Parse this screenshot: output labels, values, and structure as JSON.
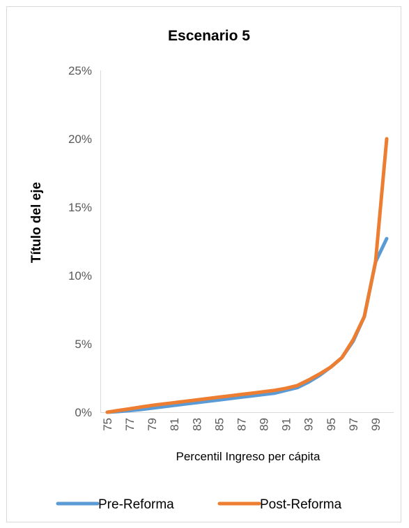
{
  "chart_data": {
    "type": "line",
    "title": "Escenario 5",
    "xlabel": "Percentil Ingreso per cápita",
    "ylabel": "Título del eje",
    "x": [
      75,
      76,
      77,
      78,
      79,
      80,
      81,
      82,
      83,
      84,
      85,
      86,
      87,
      88,
      89,
      90,
      91,
      92,
      93,
      94,
      95,
      96,
      97,
      98,
      99,
      100
    ],
    "x_tick_labels": [
      "75",
      "77",
      "79",
      "81",
      "83",
      "85",
      "87",
      "89",
      "91",
      "93",
      "95",
      "97",
      "99"
    ],
    "y_tick_labels": [
      "0%",
      "5%",
      "10%",
      "15%",
      "20%",
      "25%"
    ],
    "ylim": [
      0,
      0.25
    ],
    "grid": false,
    "legend_position": "bottom",
    "series": [
      {
        "name": "Pre-Reforma",
        "color": "#5b9bd5",
        "values": [
          0.0,
          0.0005,
          0.0012,
          0.002,
          0.003,
          0.004,
          0.005,
          0.006,
          0.007,
          0.008,
          0.009,
          0.01,
          0.011,
          0.012,
          0.013,
          0.014,
          0.016,
          0.018,
          0.022,
          0.027,
          0.033,
          0.04,
          0.052,
          0.07,
          0.11,
          0.127
        ]
      },
      {
        "name": "Post-Reforma",
        "color": "#ed7d31",
        "values": [
          0.0,
          0.0013,
          0.0025,
          0.0038,
          0.005,
          0.006,
          0.007,
          0.008,
          0.009,
          0.01,
          0.011,
          0.012,
          0.013,
          0.014,
          0.015,
          0.016,
          0.0175,
          0.0195,
          0.0235,
          0.028,
          0.033,
          0.04,
          0.053,
          0.07,
          0.11,
          0.2
        ]
      }
    ]
  }
}
